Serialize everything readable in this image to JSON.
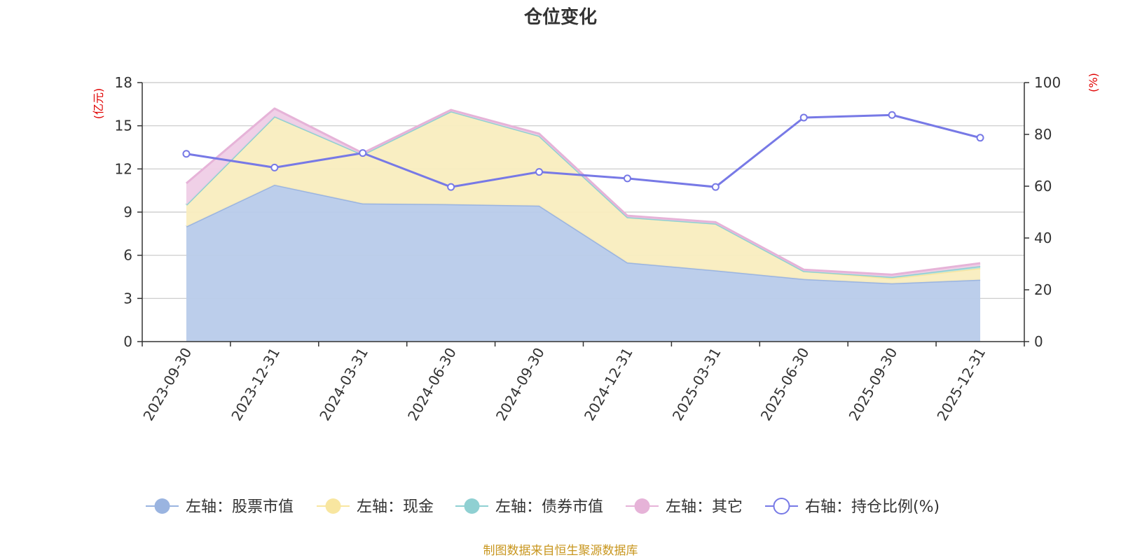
{
  "chart_data": {
    "type": "area",
    "title": "仓位变化",
    "categories": [
      "2023-09-30",
      "2023-12-31",
      "2024-03-31",
      "2024-06-30",
      "2024-09-30",
      "2024-12-31",
      "2025-03-31",
      "2025-06-30",
      "2025-09-30",
      "2025-12-31"
    ],
    "left_axis": {
      "unit": "(亿元)",
      "ylim": [
        0,
        18
      ],
      "ticks": [
        "0",
        "3",
        "6",
        "9",
        "12",
        "15",
        "18"
      ]
    },
    "right_axis": {
      "unit": "(%)",
      "ylim": [
        0,
        100
      ],
      "ticks": [
        "0",
        "20",
        "40",
        "60",
        "80",
        "100"
      ]
    },
    "grid": true,
    "stacked": true,
    "series": [
      {
        "name": "左轴：股票市值",
        "axis": "left",
        "color": "#9ab4e0",
        "fill": "#b8cbea",
        "values": [
          8.0,
          10.9,
          9.6,
          9.55,
          9.45,
          5.5,
          4.95,
          4.35,
          4.05,
          4.3
        ]
      },
      {
        "name": "左轴：现金",
        "axis": "left",
        "color": "#f8e6a0",
        "fill": "#f9edbf",
        "values": [
          1.5,
          4.75,
          3.4,
          6.45,
          4.85,
          3.15,
          3.25,
          0.55,
          0.35,
          0.8
        ]
      },
      {
        "name": "左轴：债券市值",
        "axis": "left",
        "color": "#8fd0d2",
        "fill": "#b6e2e3",
        "values": [
          0.0,
          0.0,
          0.0,
          0.0,
          0.0,
          0.0,
          0.0,
          0.0,
          0.1,
          0.15
        ]
      },
      {
        "name": "左轴：其它",
        "axis": "left",
        "color": "#e6b3d8",
        "fill": "#efcde6",
        "values": [
          1.5,
          0.55,
          0.1,
          0.1,
          0.15,
          0.1,
          0.1,
          0.1,
          0.15,
          0.2
        ]
      },
      {
        "name": "右轴：持仓比例(%)",
        "axis": "right",
        "color": "#7779e6",
        "values": [
          72.5,
          67.2,
          72.8,
          59.7,
          65.5,
          63.0,
          59.7,
          86.5,
          87.5,
          78.7
        ]
      }
    ],
    "legend_position": "bottom",
    "source": "制图数据来自恒生聚源数据库"
  }
}
